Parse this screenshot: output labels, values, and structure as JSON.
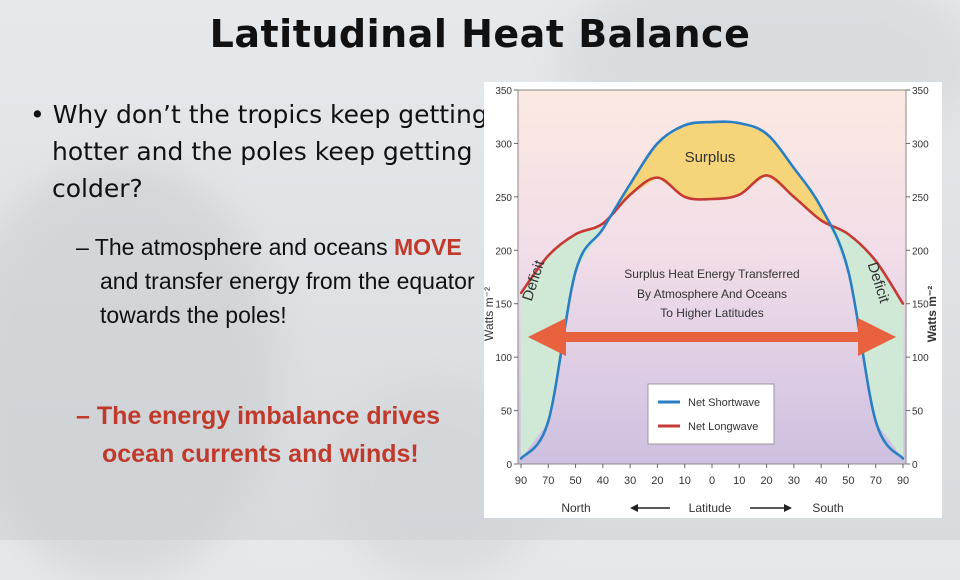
{
  "slide": {
    "title": "Latitudinal Heat Balance",
    "bullet_main": "• Why don’t the tropics keep getting hotter and the poles keep getting colder?",
    "sub1_prefix": "– The atmosphere and oceans ",
    "sub1_highlight": "MOVE",
    "sub1_suffix": " and transfer energy from the equator towards the poles!",
    "sub2": "– The energy imbalance drives ocean currents and winds!"
  },
  "colors": {
    "shortwave": "#2a7fc4",
    "longwave": "#c63a35",
    "surplus_fill": "#f6d47a",
    "deficit_fill": "#cfe9d6",
    "arrow": "#e8623f",
    "highlight_text": "#c0392b"
  },
  "chart_data": {
    "type": "line",
    "ylabel": "Watts m⁻²",
    "xlabel": "Latitude",
    "x_tick_labels": [
      "90",
      "70",
      "50",
      "40",
      "30",
      "20",
      "10",
      "0",
      "10",
      "20",
      "30",
      "40",
      "50",
      "70",
      "90"
    ],
    "y_ticks": [
      0,
      50,
      100,
      150,
      200,
      250,
      300,
      350
    ],
    "ylim": [
      0,
      350
    ],
    "x_direction_left": "North",
    "x_direction_right": "South",
    "region_labels": {
      "surplus": "Surplus",
      "deficit_left": "Deficit",
      "deficit_right": "Deficit"
    },
    "annotation": [
      "Surplus Heat Energy Transferred",
      "By Atmosphere And Oceans",
      "To Higher Latitudes"
    ],
    "series": [
      {
        "name": "Net Shortwave",
        "values": [
          5,
          40,
          180,
          220,
          262,
          300,
          317,
          320,
          319,
          309,
          277,
          240,
          180,
          40,
          5
        ]
      },
      {
        "name": "Net Longwave",
        "values": [
          160,
          195,
          215,
          225,
          252,
          268,
          250,
          248,
          252,
          270,
          250,
          228,
          215,
          190,
          150
        ]
      }
    ],
    "legend_position": "bottom-center",
    "grid": false
  }
}
